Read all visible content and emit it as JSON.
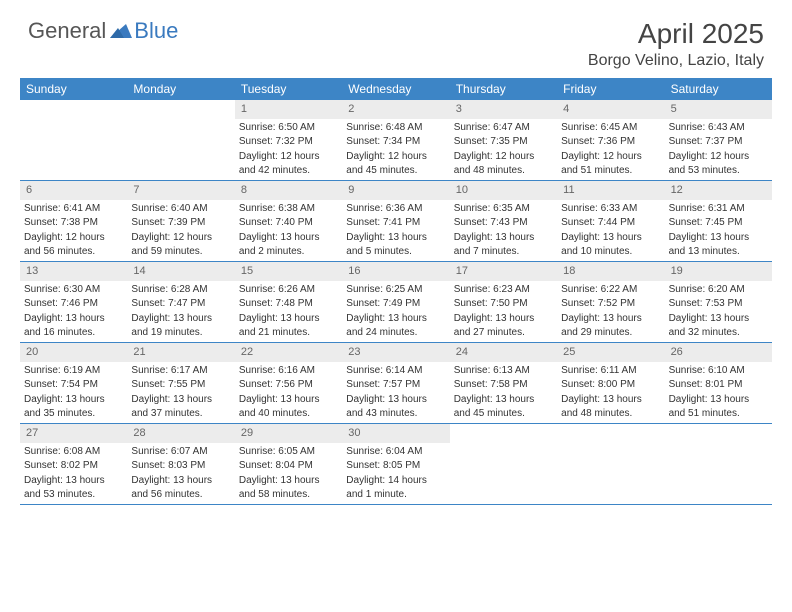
{
  "logo": {
    "general": "General",
    "blue": "Blue"
  },
  "title": "April 2025",
  "location": "Borgo Velino, Lazio, Italy",
  "day_names": [
    "Sunday",
    "Monday",
    "Tuesday",
    "Wednesday",
    "Thursday",
    "Friday",
    "Saturday"
  ],
  "colors": {
    "header_bg": "#3d85c6",
    "daynum_bg": "#ececec",
    "border": "#3d85c6",
    "text": "#333333",
    "logo_gray": "#565656",
    "logo_blue": "#3a7abf"
  },
  "weeks": [
    [
      {
        "day": "",
        "lines": []
      },
      {
        "day": "",
        "lines": []
      },
      {
        "day": "1",
        "lines": [
          "Sunrise: 6:50 AM",
          "Sunset: 7:32 PM",
          "Daylight: 12 hours",
          "and 42 minutes."
        ]
      },
      {
        "day": "2",
        "lines": [
          "Sunrise: 6:48 AM",
          "Sunset: 7:34 PM",
          "Daylight: 12 hours",
          "and 45 minutes."
        ]
      },
      {
        "day": "3",
        "lines": [
          "Sunrise: 6:47 AM",
          "Sunset: 7:35 PM",
          "Daylight: 12 hours",
          "and 48 minutes."
        ]
      },
      {
        "day": "4",
        "lines": [
          "Sunrise: 6:45 AM",
          "Sunset: 7:36 PM",
          "Daylight: 12 hours",
          "and 51 minutes."
        ]
      },
      {
        "day": "5",
        "lines": [
          "Sunrise: 6:43 AM",
          "Sunset: 7:37 PM",
          "Daylight: 12 hours",
          "and 53 minutes."
        ]
      }
    ],
    [
      {
        "day": "6",
        "lines": [
          "Sunrise: 6:41 AM",
          "Sunset: 7:38 PM",
          "Daylight: 12 hours",
          "and 56 minutes."
        ]
      },
      {
        "day": "7",
        "lines": [
          "Sunrise: 6:40 AM",
          "Sunset: 7:39 PM",
          "Daylight: 12 hours",
          "and 59 minutes."
        ]
      },
      {
        "day": "8",
        "lines": [
          "Sunrise: 6:38 AM",
          "Sunset: 7:40 PM",
          "Daylight: 13 hours",
          "and 2 minutes."
        ]
      },
      {
        "day": "9",
        "lines": [
          "Sunrise: 6:36 AM",
          "Sunset: 7:41 PM",
          "Daylight: 13 hours",
          "and 5 minutes."
        ]
      },
      {
        "day": "10",
        "lines": [
          "Sunrise: 6:35 AM",
          "Sunset: 7:43 PM",
          "Daylight: 13 hours",
          "and 7 minutes."
        ]
      },
      {
        "day": "11",
        "lines": [
          "Sunrise: 6:33 AM",
          "Sunset: 7:44 PM",
          "Daylight: 13 hours",
          "and 10 minutes."
        ]
      },
      {
        "day": "12",
        "lines": [
          "Sunrise: 6:31 AM",
          "Sunset: 7:45 PM",
          "Daylight: 13 hours",
          "and 13 minutes."
        ]
      }
    ],
    [
      {
        "day": "13",
        "lines": [
          "Sunrise: 6:30 AM",
          "Sunset: 7:46 PM",
          "Daylight: 13 hours",
          "and 16 minutes."
        ]
      },
      {
        "day": "14",
        "lines": [
          "Sunrise: 6:28 AM",
          "Sunset: 7:47 PM",
          "Daylight: 13 hours",
          "and 19 minutes."
        ]
      },
      {
        "day": "15",
        "lines": [
          "Sunrise: 6:26 AM",
          "Sunset: 7:48 PM",
          "Daylight: 13 hours",
          "and 21 minutes."
        ]
      },
      {
        "day": "16",
        "lines": [
          "Sunrise: 6:25 AM",
          "Sunset: 7:49 PM",
          "Daylight: 13 hours",
          "and 24 minutes."
        ]
      },
      {
        "day": "17",
        "lines": [
          "Sunrise: 6:23 AM",
          "Sunset: 7:50 PM",
          "Daylight: 13 hours",
          "and 27 minutes."
        ]
      },
      {
        "day": "18",
        "lines": [
          "Sunrise: 6:22 AM",
          "Sunset: 7:52 PM",
          "Daylight: 13 hours",
          "and 29 minutes."
        ]
      },
      {
        "day": "19",
        "lines": [
          "Sunrise: 6:20 AM",
          "Sunset: 7:53 PM",
          "Daylight: 13 hours",
          "and 32 minutes."
        ]
      }
    ],
    [
      {
        "day": "20",
        "lines": [
          "Sunrise: 6:19 AM",
          "Sunset: 7:54 PM",
          "Daylight: 13 hours",
          "and 35 minutes."
        ]
      },
      {
        "day": "21",
        "lines": [
          "Sunrise: 6:17 AM",
          "Sunset: 7:55 PM",
          "Daylight: 13 hours",
          "and 37 minutes."
        ]
      },
      {
        "day": "22",
        "lines": [
          "Sunrise: 6:16 AM",
          "Sunset: 7:56 PM",
          "Daylight: 13 hours",
          "and 40 minutes."
        ]
      },
      {
        "day": "23",
        "lines": [
          "Sunrise: 6:14 AM",
          "Sunset: 7:57 PM",
          "Daylight: 13 hours",
          "and 43 minutes."
        ]
      },
      {
        "day": "24",
        "lines": [
          "Sunrise: 6:13 AM",
          "Sunset: 7:58 PM",
          "Daylight: 13 hours",
          "and 45 minutes."
        ]
      },
      {
        "day": "25",
        "lines": [
          "Sunrise: 6:11 AM",
          "Sunset: 8:00 PM",
          "Daylight: 13 hours",
          "and 48 minutes."
        ]
      },
      {
        "day": "26",
        "lines": [
          "Sunrise: 6:10 AM",
          "Sunset: 8:01 PM",
          "Daylight: 13 hours",
          "and 51 minutes."
        ]
      }
    ],
    [
      {
        "day": "27",
        "lines": [
          "Sunrise: 6:08 AM",
          "Sunset: 8:02 PM",
          "Daylight: 13 hours",
          "and 53 minutes."
        ]
      },
      {
        "day": "28",
        "lines": [
          "Sunrise: 6:07 AM",
          "Sunset: 8:03 PM",
          "Daylight: 13 hours",
          "and 56 minutes."
        ]
      },
      {
        "day": "29",
        "lines": [
          "Sunrise: 6:05 AM",
          "Sunset: 8:04 PM",
          "Daylight: 13 hours",
          "and 58 minutes."
        ]
      },
      {
        "day": "30",
        "lines": [
          "Sunrise: 6:04 AM",
          "Sunset: 8:05 PM",
          "Daylight: 14 hours",
          "and 1 minute."
        ]
      },
      {
        "day": "",
        "lines": []
      },
      {
        "day": "",
        "lines": []
      },
      {
        "day": "",
        "lines": []
      }
    ]
  ]
}
